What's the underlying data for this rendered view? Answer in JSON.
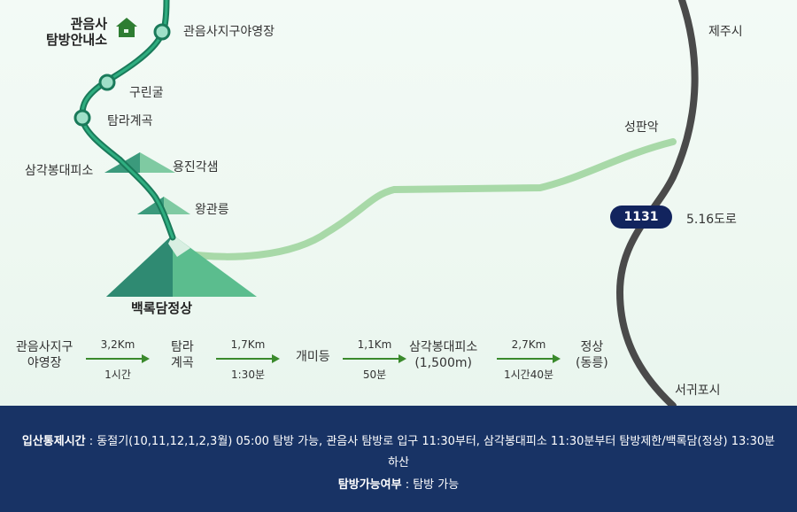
{
  "map": {
    "labels": {
      "gwaneumsa_center": "관음사\n탐방안내소",
      "campsite": "관음사지구야영장",
      "gurin": "구린굴",
      "tamna": "탐라계곡",
      "samgak": "삼각봉대피소",
      "yongjin": "용진각샘",
      "wanggwan": "왕관릉",
      "summit": "백록담정상",
      "seongpan": "성판악",
      "jeju": "제주시",
      "seogwipo": "서귀포시",
      "road_name": "5.16도로",
      "road_number": "1131"
    },
    "colors": {
      "trail": "#1a8a6a",
      "road_green": "#a8d9a8",
      "road_gray": "#4a4a4a",
      "road_badge": "#12245e"
    },
    "icons": [
      "house-icon",
      "trail-node-icon",
      "mountain-icon"
    ]
  },
  "route": {
    "stops": [
      "관음사지구\n야영장",
      "탐라\n계곡",
      "개미등",
      "삼각봉대피소\n(1,500m)",
      "정상\n(동릉)"
    ],
    "segments": [
      {
        "distance": "3,2Km",
        "time": "1시간"
      },
      {
        "distance": "1,7Km",
        "time": "1:30분"
      },
      {
        "distance": "1,1Km",
        "time": "50분"
      },
      {
        "distance": "2,7Km",
        "time": "1시간40분"
      }
    ]
  },
  "info": {
    "control_label": "입산통제시간",
    "control_text": " : 동절기(10,11,12,1,2,3월) 05:00 탐방 가능, 관음사 탐방로 입구 11:30부터, 삼각봉대피소 11:30분부터 탐방제한/백록담(정상) 13:30분",
    "control_text_cont": "하산",
    "access_label": "탐방가능여부",
    "access_text": " : 탐방 가능"
  }
}
